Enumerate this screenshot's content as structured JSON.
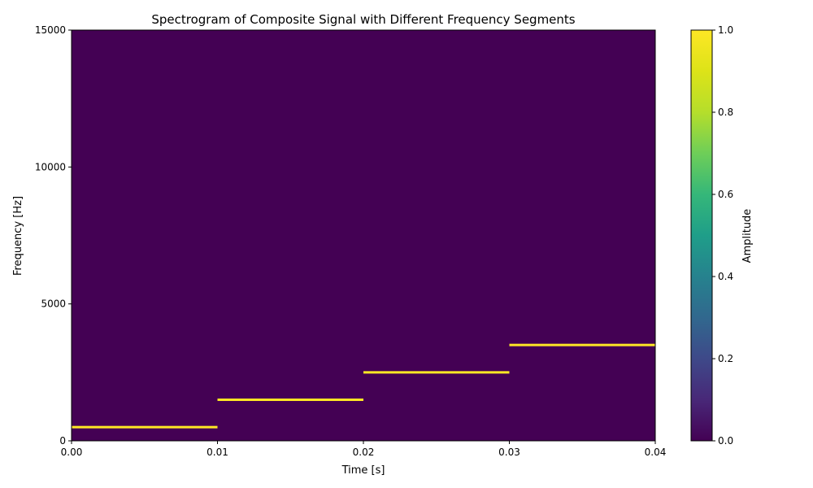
{
  "chart_data": {
    "type": "heatmap",
    "title": "Spectrogram of Composite Signal with Different Frequency Segments",
    "xlabel": "Time [s]",
    "ylabel": "Frequency [Hz]",
    "xlim": [
      0,
      0.04
    ],
    "ylim": [
      0,
      15000
    ],
    "x_ticks": [
      "0.00",
      "0.01",
      "0.02",
      "0.03",
      "0.04"
    ],
    "y_ticks": [
      "0",
      "5000",
      "10000",
      "15000"
    ],
    "background_value": 0.0,
    "segments": [
      {
        "t_start": 0.0,
        "t_end": 0.01,
        "frequency": 500,
        "amplitude": 1.0
      },
      {
        "t_start": 0.01,
        "t_end": 0.02,
        "frequency": 1500,
        "amplitude": 1.0
      },
      {
        "t_start": 0.02,
        "t_end": 0.03,
        "frequency": 2500,
        "amplitude": 1.0
      },
      {
        "t_start": 0.03,
        "t_end": 0.04,
        "frequency": 3500,
        "amplitude": 1.0
      }
    ],
    "colorbar": {
      "label": "Amplitude",
      "range": [
        0,
        1
      ],
      "ticks": [
        "0.0",
        "0.2",
        "0.4",
        "0.6",
        "0.8",
        "1.0"
      ],
      "colormap": "viridis"
    },
    "colors": {
      "low": "#440154",
      "high": "#fde725"
    }
  }
}
